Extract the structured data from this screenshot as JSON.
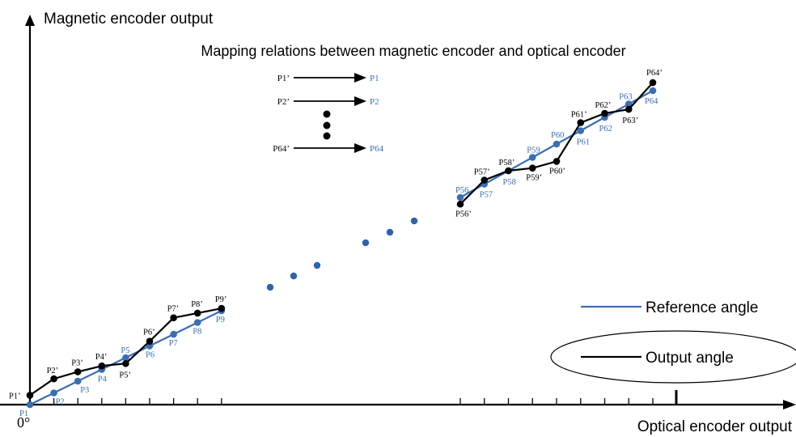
{
  "axes": {
    "y_label": "Magnetic encoder output",
    "x_label": "Optical encoder output",
    "origin_label": "0°"
  },
  "title": "Mapping relations between magnetic encoder and optical encoder",
  "mapping_table": [
    {
      "from": "P1’",
      "to": "P1"
    },
    {
      "from": "P2’",
      "to": "P2"
    },
    {
      "from": "P64’",
      "to": "P64"
    }
  ],
  "legend": {
    "reference": "Reference angle",
    "output": "Output angle"
  },
  "colors": {
    "reference": "#3a6eb5",
    "output": "#000000",
    "ellipsis_dots": "#2e63ad"
  },
  "chart_data": {
    "type": "line",
    "series": [
      {
        "name": "Reference angle",
        "points": [
          {
            "label": "P1",
            "x": 1,
            "y": 0
          },
          {
            "label": "P2",
            "x": 2,
            "y": 1
          },
          {
            "label": "P3",
            "x": 3,
            "y": 2
          },
          {
            "label": "P4",
            "x": 4,
            "y": 3
          },
          {
            "label": "P5",
            "x": 5,
            "y": 4
          },
          {
            "label": "P6",
            "x": 6,
            "y": 5
          },
          {
            "label": "P7",
            "x": 7,
            "y": 6
          },
          {
            "label": "P8",
            "x": 8,
            "y": 7
          },
          {
            "label": "P9",
            "x": 9,
            "y": 8
          }
        ],
        "points_end": [
          {
            "label": "P56",
            "x": 56,
            "y": 55
          },
          {
            "label": "P57",
            "x": 57,
            "y": 56
          },
          {
            "label": "P58",
            "x": 58,
            "y": 57
          },
          {
            "label": "P59",
            "x": 59,
            "y": 58
          },
          {
            "label": "P60",
            "x": 60,
            "y": 59
          },
          {
            "label": "P61",
            "x": 61,
            "y": 60
          },
          {
            "label": "P62",
            "x": 62,
            "y": 61
          },
          {
            "label": "P63",
            "x": 63,
            "y": 62
          },
          {
            "label": "P64",
            "x": 64,
            "y": 63
          }
        ]
      },
      {
        "name": "Output angle",
        "points": [
          {
            "label": "P1’",
            "x": 1,
            "y": 0.8
          },
          {
            "label": "P2’",
            "x": 2,
            "y": 2.2
          },
          {
            "label": "P3’",
            "x": 3,
            "y": 2.8
          },
          {
            "label": "P4’",
            "x": 4,
            "y": 3.3
          },
          {
            "label": "P5’",
            "x": 5,
            "y": 3.5
          },
          {
            "label": "P6’",
            "x": 6,
            "y": 5.4
          },
          {
            "label": "P7’",
            "x": 7,
            "y": 7.4
          },
          {
            "label": "P8’",
            "x": 8,
            "y": 7.8
          },
          {
            "label": "P9’",
            "x": 9,
            "y": 8.2
          }
        ],
        "points_end": [
          {
            "label": "P56’",
            "x": 56,
            "y": 54.5
          },
          {
            "label": "P57’",
            "x": 57,
            "y": 56.3
          },
          {
            "label": "P58’",
            "x": 58,
            "y": 57.0
          },
          {
            "label": "P59’",
            "x": 59,
            "y": 57.2
          },
          {
            "label": "P60’",
            "x": 60,
            "y": 57.7
          },
          {
            "label": "P61’",
            "x": 61,
            "y": 60.6
          },
          {
            "label": "P62’",
            "x": 62,
            "y": 61.3
          },
          {
            "label": "P63’",
            "x": 63,
            "y": 61.6
          },
          {
            "label": "P64’",
            "x": 64,
            "y": 63.6
          }
        ]
      }
    ]
  }
}
